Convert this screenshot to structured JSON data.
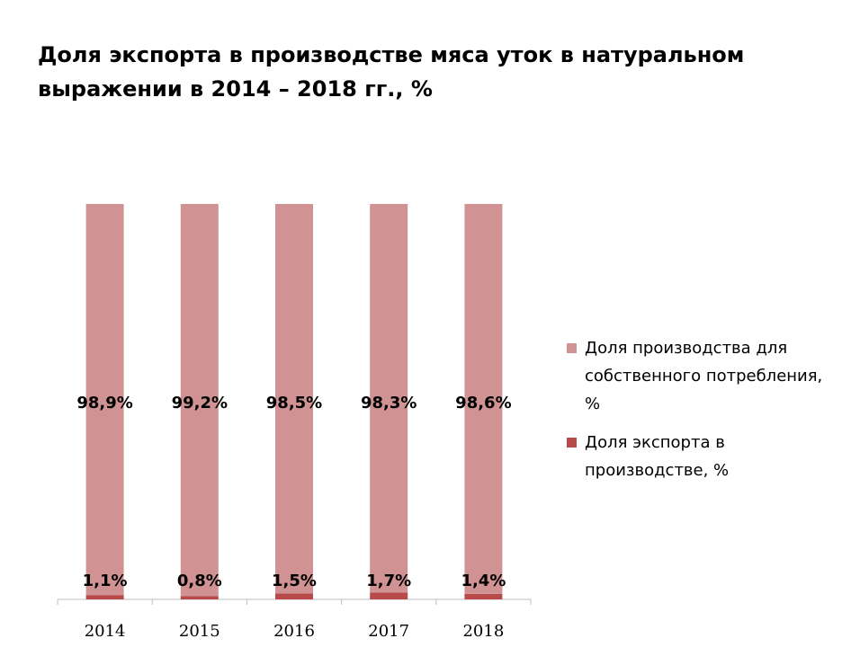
{
  "chart_data": {
    "type": "bar",
    "stacked": true,
    "title": "Доля экспорта в производстве мяса уток в натуральном выражении в 2014 – 2018 гг., %",
    "categories": [
      "2014",
      "2015",
      "2016",
      "2017",
      "2018"
    ],
    "series": [
      {
        "name": "Доля экспорта в производстве, %",
        "values": [
          1.1,
          0.8,
          1.5,
          1.7,
          1.4
        ],
        "labels": [
          "1,1%",
          "0,8%",
          "1,5%",
          "1,7%",
          "1,4%"
        ],
        "color": "#b84a4a"
      },
      {
        "name": "Доля производства для собственного потребления, %",
        "values": [
          98.9,
          99.2,
          98.5,
          98.3,
          98.6
        ],
        "labels": [
          "98,9%",
          "99,2%",
          "98,5%",
          "98,3%",
          "98,6%"
        ],
        "color": "#d09292"
      }
    ],
    "ylim": [
      0,
      100
    ],
    "grid": false,
    "legend_position": "right"
  }
}
